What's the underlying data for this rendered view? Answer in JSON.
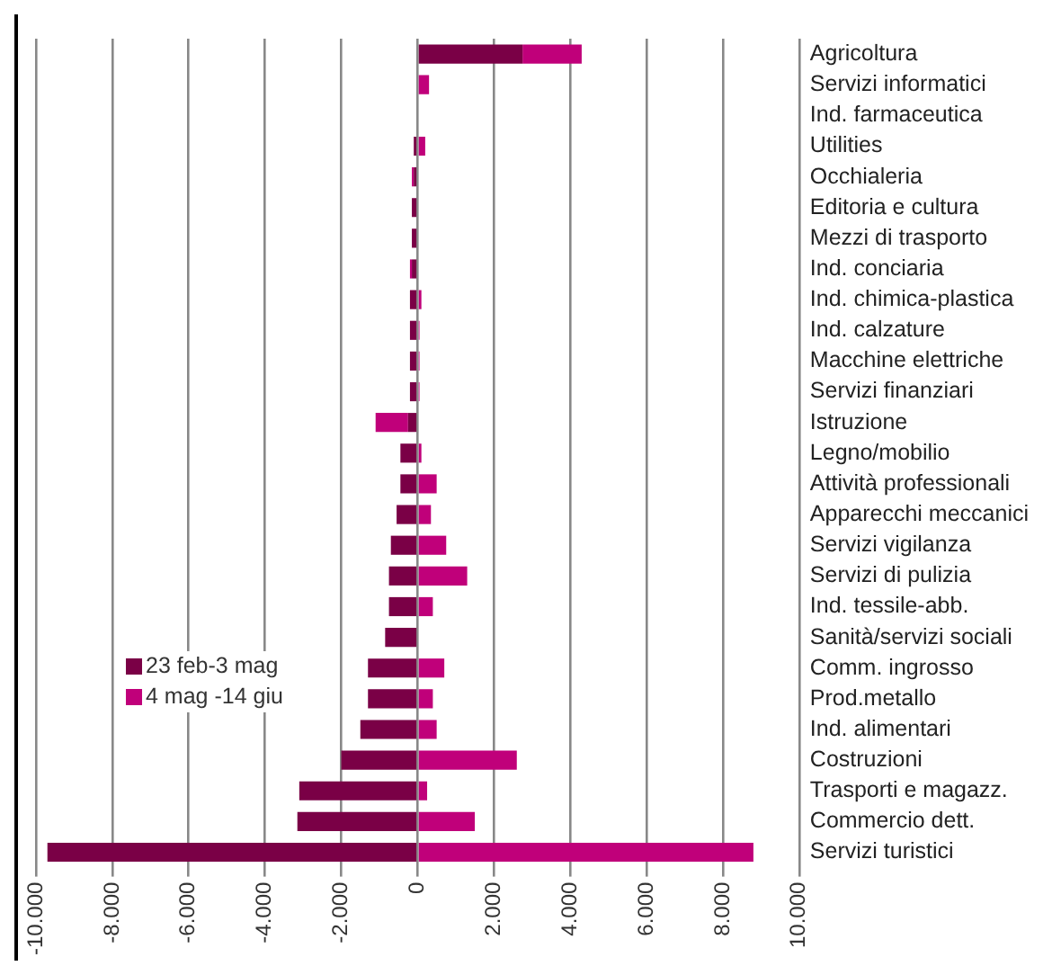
{
  "chart_data": {
    "type": "bar",
    "orientation": "horizontal",
    "stacked": true,
    "grid": "x",
    "legend": "left",
    "categories": [
      "Agricoltura",
      "Servizi informatici",
      "Ind. farmaceutica",
      "Utilities",
      "Occhialeria",
      "Editoria e cultura",
      "Mezzi di trasporto",
      "Ind. conciaria",
      "Ind. chimica-plastica",
      "Ind. calzature",
      "Macchine elettriche",
      "Servizi finanziari",
      "Istruzione",
      "Legno/mobilio",
      "Attività professionali",
      "Apparecchi meccanici",
      "Servizi vigilanza",
      "Servizi di pulizia",
      "Ind. tessile-abb.",
      "Sanità/servizi sociali",
      "Comm. ingrosso",
      "Prod.metallo",
      "Ind. alimentari",
      "Costruzioni",
      "Trasporti e magazz.",
      "Commercio dett.",
      "Servizi turistici"
    ],
    "series": [
      {
        "name": "23 feb-3 mag",
        "color": "#7a0046",
        "values": [
          2750,
          0,
          0,
          -100,
          -100,
          -150,
          -150,
          -150,
          -200,
          -200,
          -200,
          -200,
          -250,
          -450,
          -450,
          -550,
          -700,
          -750,
          -750,
          -850,
          -1300,
          -1300,
          -1500,
          -2000,
          -3100,
          -3150,
          -9700
        ]
      },
      {
        "name": "4 mag -14 giu",
        "color": "#c0007a",
        "values": [
          1550,
          300,
          0,
          200,
          -50,
          0,
          0,
          -50,
          100,
          50,
          50,
          50,
          -850,
          100,
          500,
          350,
          750,
          1300,
          400,
          0,
          700,
          400,
          500,
          2600,
          250,
          1500,
          8800
        ]
      }
    ],
    "xlim": [
      -10000,
      10000
    ],
    "xticks": [
      {
        "value": -10000,
        "label": "-10.000"
      },
      {
        "value": -8000,
        "label": "-8.000"
      },
      {
        "value": -6000,
        "label": "-6.000"
      },
      {
        "value": -4000,
        "label": "-4.000"
      },
      {
        "value": -2000,
        "label": "-2.000"
      },
      0,
      {
        "value": 2000,
        "label": "2.000"
      },
      {
        "value": 4000,
        "label": "4.000"
      },
      {
        "value": 6000,
        "label": "6.000"
      },
      {
        "value": 8000,
        "label": "8.000"
      },
      {
        "value": 10000,
        "label": "10.000"
      }
    ]
  }
}
